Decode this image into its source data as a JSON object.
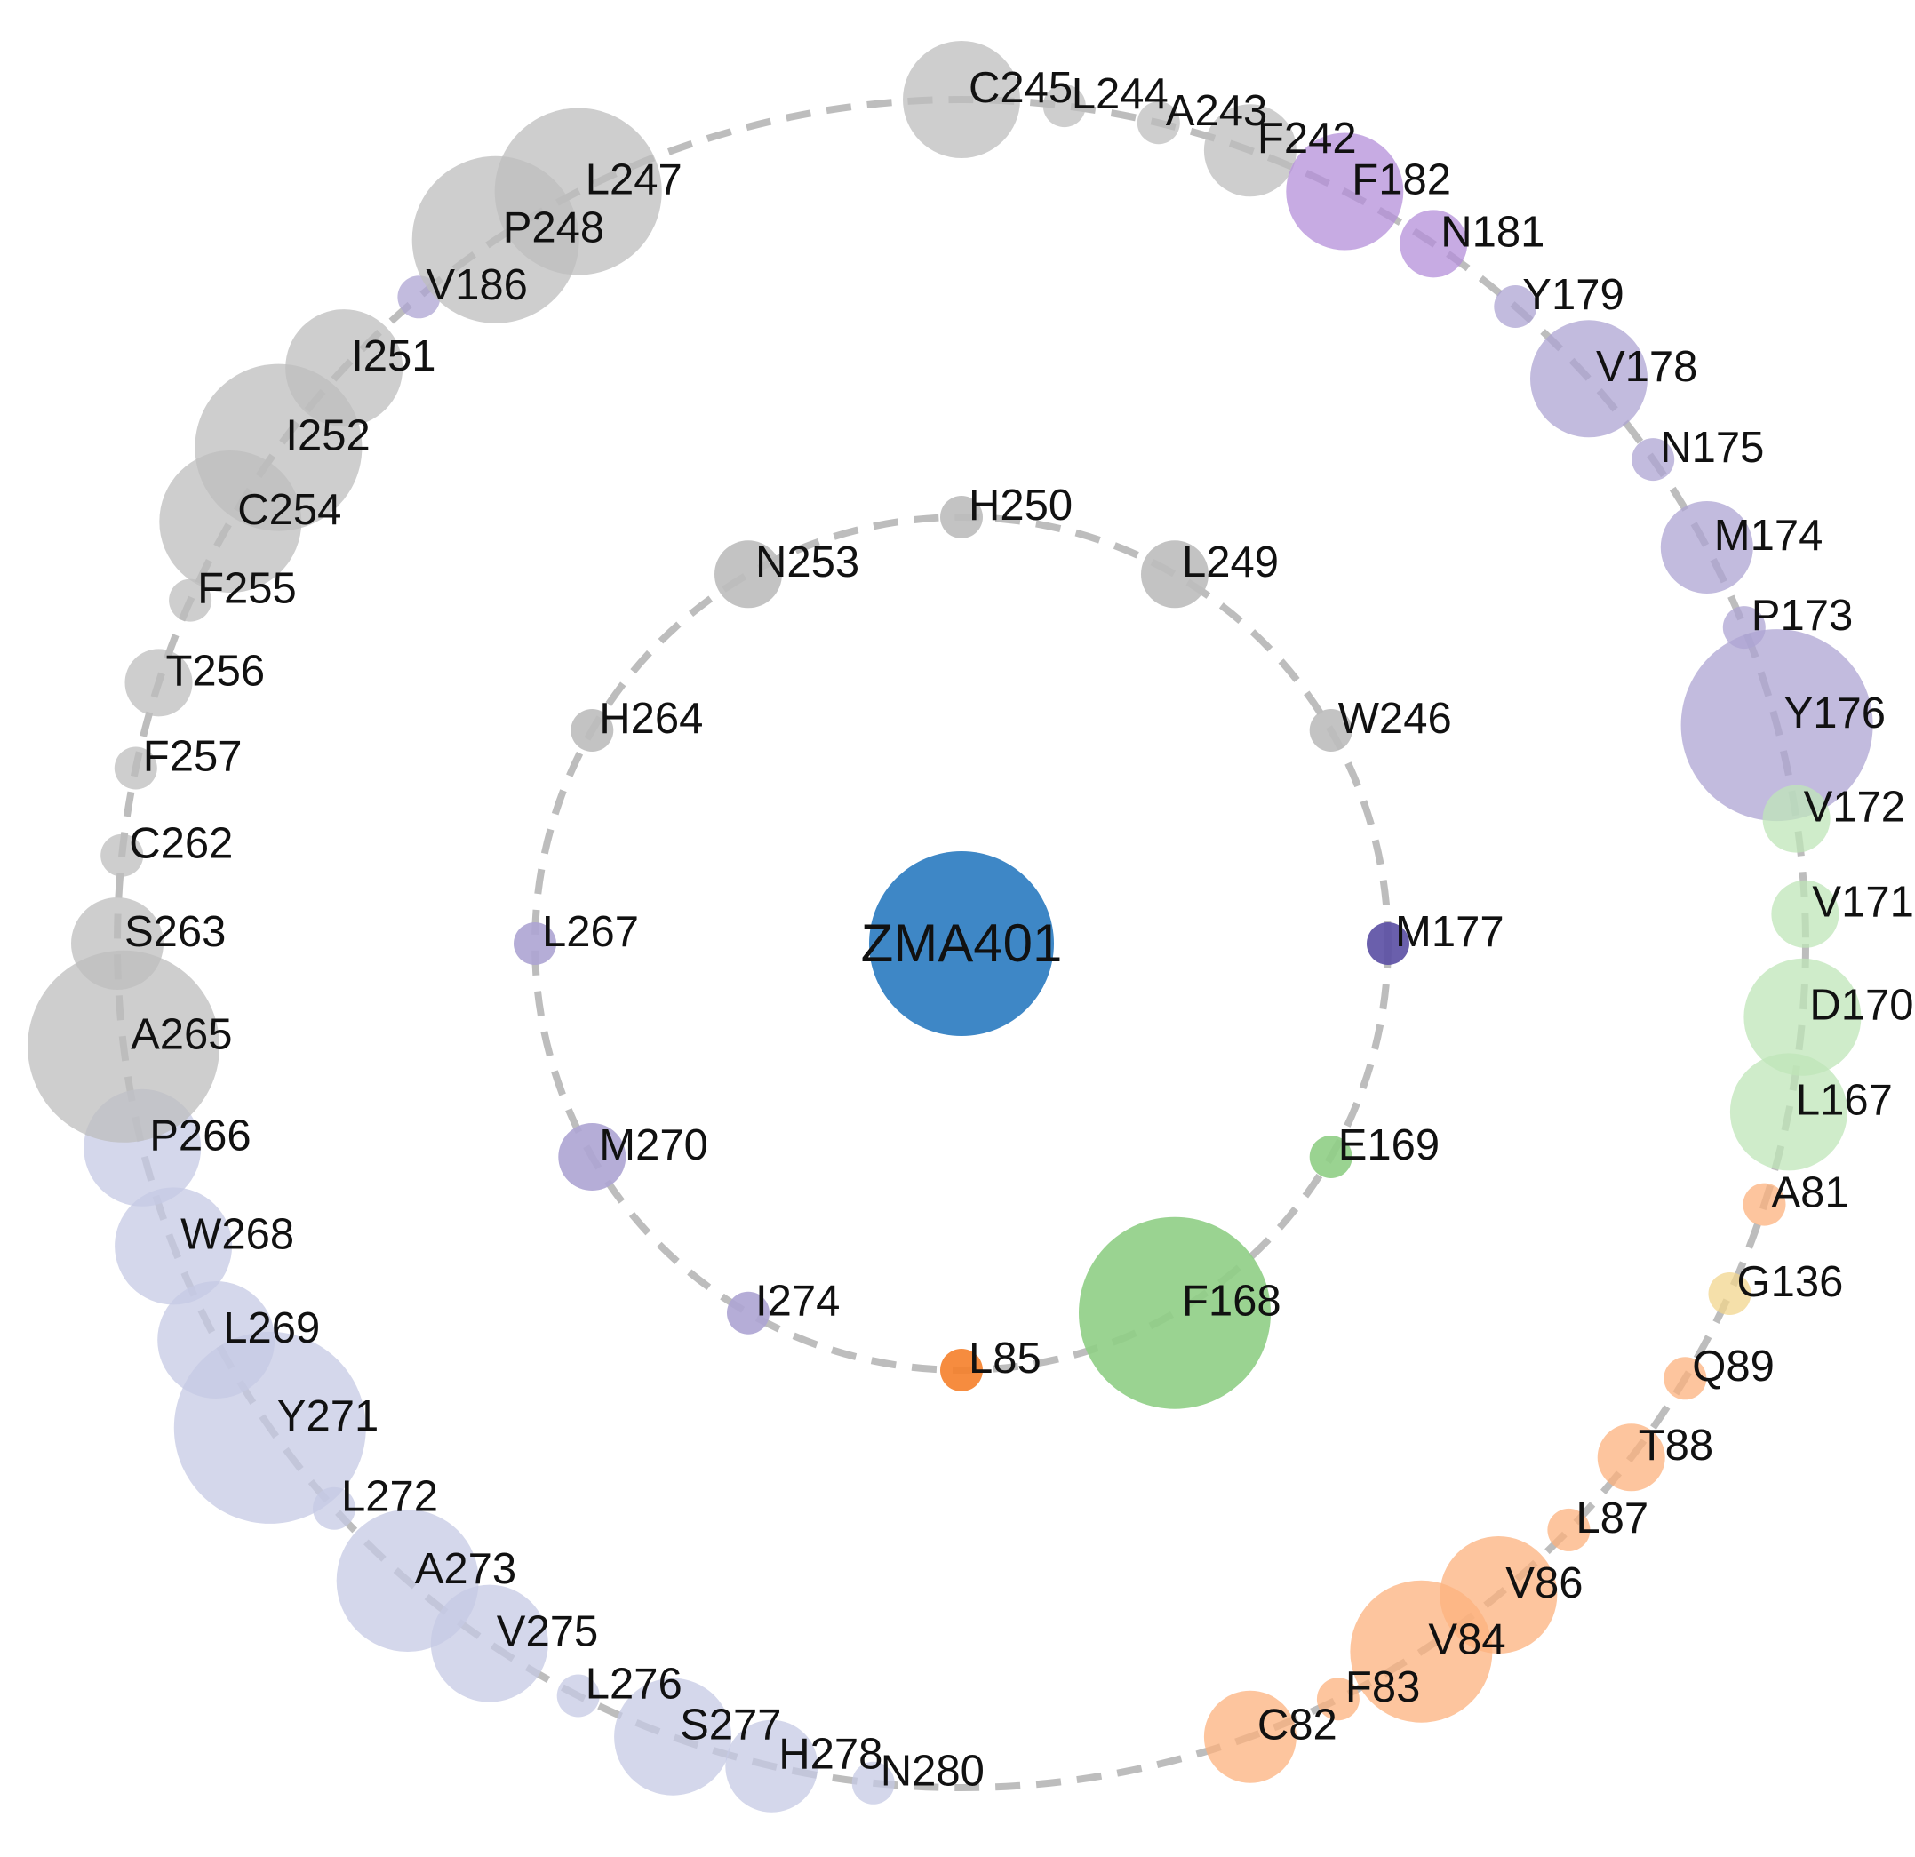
{
  "ligand": {
    "label": "ZMA401",
    "color": "#3e87c6"
  },
  "palette": {
    "grey": "#bdbdbd",
    "purple_light": "#ada4d3",
    "purple_medium": "#9b8fc9",
    "purple_dark": "#5a4ea3",
    "violet": "#b48fd9",
    "lavender": "#c5c9e4",
    "green": "#8fce85",
    "green_light": "#bfe6b8",
    "orange": "#fcb27d",
    "orange_dark": "#f57f2a",
    "tan": "#f2d68e"
  },
  "inner_ring": [
    {
      "label": "H250",
      "color": "grey",
      "weight": 1
    },
    {
      "label": "L249",
      "color": "grey",
      "weight": 2
    },
    {
      "label": "W246",
      "color": "grey",
      "weight": 1
    },
    {
      "label": "M177",
      "color": "purple_dark",
      "weight": 1
    },
    {
      "label": "E169",
      "color": "green",
      "weight": 1
    },
    {
      "label": "F168",
      "color": "green",
      "weight": 7
    },
    {
      "label": "L85",
      "color": "orange_dark",
      "weight": 1
    },
    {
      "label": "I274",
      "color": "purple_light",
      "weight": 1
    },
    {
      "label": "M270",
      "color": "purple_light",
      "weight": 2
    },
    {
      "label": "L267",
      "color": "purple_light",
      "weight": 1
    },
    {
      "label": "H264",
      "color": "grey",
      "weight": 1
    },
    {
      "label": "N253",
      "color": "grey",
      "weight": 2
    }
  ],
  "outer_ring": [
    {
      "label": "C245",
      "color": "grey",
      "weight": 4
    },
    {
      "label": "L244",
      "color": "grey",
      "weight": 1
    },
    {
      "label": "A243",
      "color": "grey",
      "weight": 1
    },
    {
      "label": "F242",
      "color": "grey",
      "weight": 3
    },
    {
      "label": "F182",
      "color": "violet",
      "weight": 4
    },
    {
      "label": "N181",
      "color": "violet",
      "weight": 2
    },
    {
      "label": "Y179",
      "color": "purple_light",
      "weight": 1
    },
    {
      "label": "V178",
      "color": "purple_light",
      "weight": 4
    },
    {
      "label": "N175",
      "color": "purple_light",
      "weight": 1
    },
    {
      "label": "M174",
      "color": "purple_light",
      "weight": 3
    },
    {
      "label": "P173",
      "color": "purple_light",
      "weight": 1
    },
    {
      "label": "Y176",
      "color": "purple_light",
      "weight": 7
    },
    {
      "label": "V172",
      "color": "green_light",
      "weight": 2
    },
    {
      "label": "V171",
      "color": "green_light",
      "weight": 2
    },
    {
      "label": "D170",
      "color": "green_light",
      "weight": 4
    },
    {
      "label": "L167",
      "color": "green_light",
      "weight": 4
    },
    {
      "label": "A81",
      "color": "orange",
      "weight": 1
    },
    {
      "label": "G136",
      "color": "tan",
      "weight": 1
    },
    {
      "label": "Q89",
      "color": "orange",
      "weight": 1
    },
    {
      "label": "T88",
      "color": "orange",
      "weight": 2
    },
    {
      "label": "L87",
      "color": "orange",
      "weight": 1
    },
    {
      "label": "V86",
      "color": "orange",
      "weight": 4
    },
    {
      "label": "V84",
      "color": "orange",
      "weight": 5
    },
    {
      "label": "F83",
      "color": "orange",
      "weight": 1
    },
    {
      "label": "C82",
      "color": "orange",
      "weight": 3
    },
    {
      "label": "N280",
      "color": "lavender",
      "weight": 1
    },
    {
      "label": "H278",
      "color": "lavender",
      "weight": 3
    },
    {
      "label": "S277",
      "color": "lavender",
      "weight": 4
    },
    {
      "label": "L276",
      "color": "lavender",
      "weight": 1
    },
    {
      "label": "V275",
      "color": "lavender",
      "weight": 4
    },
    {
      "label": "A273",
      "color": "lavender",
      "weight": 5
    },
    {
      "label": "L272",
      "color": "lavender",
      "weight": 1
    },
    {
      "label": "Y271",
      "color": "lavender",
      "weight": 7
    },
    {
      "label": "L269",
      "color": "lavender",
      "weight": 4
    },
    {
      "label": "W268",
      "color": "lavender",
      "weight": 4
    },
    {
      "label": "P266",
      "color": "lavender",
      "weight": 4
    },
    {
      "label": "A265",
      "color": "grey",
      "weight": 7
    },
    {
      "label": "S263",
      "color": "grey",
      "weight": 3
    },
    {
      "label": "C262",
      "color": "grey",
      "weight": 1
    },
    {
      "label": "F257",
      "color": "grey",
      "weight": 1
    },
    {
      "label": "T256",
      "color": "grey",
      "weight": 2
    },
    {
      "label": "F255",
      "color": "grey",
      "weight": 1
    },
    {
      "label": "C254",
      "color": "grey",
      "weight": 5
    },
    {
      "label": "I252",
      "color": "grey",
      "weight": 6
    },
    {
      "label": "I251",
      "color": "grey",
      "weight": 4
    },
    {
      "label": "V186",
      "color": "purple_light",
      "weight": 1
    },
    {
      "label": "P248",
      "color": "grey",
      "weight": 6
    },
    {
      "label": "L247",
      "color": "grey",
      "weight": 6
    }
  ]
}
